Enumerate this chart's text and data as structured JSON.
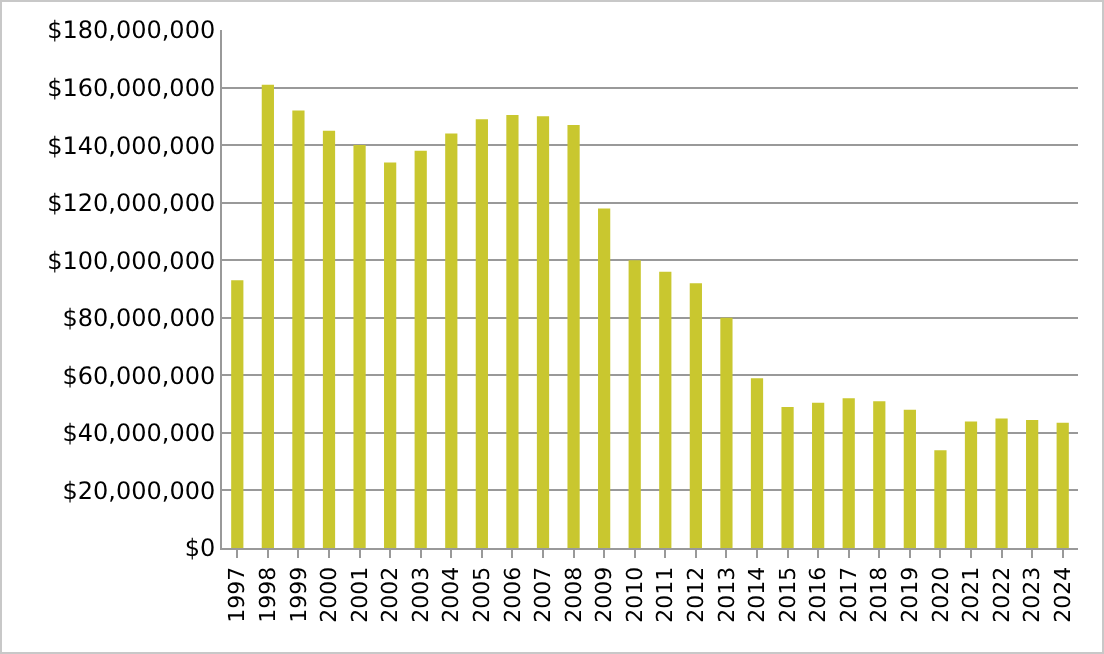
{
  "chart_data": {
    "type": "bar",
    "categories": [
      "1997",
      "1998",
      "1999",
      "2000",
      "2001",
      "2002",
      "2003",
      "2004",
      "2005",
      "2006",
      "2007",
      "2008",
      "2009",
      "2010",
      "2011",
      "2012",
      "2013",
      "2014",
      "2015",
      "2016",
      "2017",
      "2018",
      "2019",
      "2020",
      "2021",
      "2022",
      "2023",
      "2024"
    ],
    "values": [
      93000000,
      161000000,
      152000000,
      145000000,
      140000000,
      134000000,
      138000000,
      144000000,
      149000000,
      150500000,
      150000000,
      147000000,
      118000000,
      100000000,
      96000000,
      92000000,
      80000000,
      59000000,
      49000000,
      50500000,
      52000000,
      51000000,
      48000000,
      34000000,
      44000000,
      45000000,
      44500000,
      43500000
    ],
    "color": "#c9c72f",
    "ylim": [
      0,
      180000000
    ],
    "yticks": [
      {
        "value": 0,
        "label": "$0"
      },
      {
        "value": 20000000,
        "label": "$20,000,000"
      },
      {
        "value": 40000000,
        "label": "$40,000,000"
      },
      {
        "value": 60000000,
        "label": "$60,000,000"
      },
      {
        "value": 80000000,
        "label": "$80,000,000"
      },
      {
        "value": 100000000,
        "label": "$100,000,000"
      },
      {
        "value": 120000000,
        "label": "$120,000,000"
      },
      {
        "value": 140000000,
        "label": "$140,000,000"
      },
      {
        "value": 160000000,
        "label": "$160,000,000"
      },
      {
        "value": 180000000,
        "label": "$180,000,000"
      }
    ],
    "grid": "y"
  }
}
